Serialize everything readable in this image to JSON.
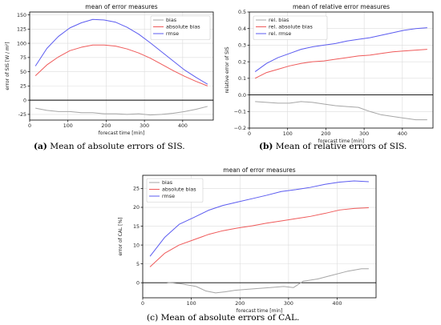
{
  "chart_data": [
    {
      "type": "line",
      "title": "mean of error measures",
      "xlabel": "forecast time [min]",
      "ylabel": "error of SIS [W / m²]",
      "xlim": [
        0,
        480
      ],
      "ylim": [
        -35,
        155
      ],
      "xticks": [
        0,
        100,
        200,
        300,
        400
      ],
      "yticks": [
        -25,
        0,
        25,
        50,
        75,
        100,
        125,
        150
      ],
      "grid": true,
      "legend": "top-right",
      "series": [
        {
          "name": "bias",
          "color": "#a6a6a6",
          "x": [
            15,
            45,
            75,
            105,
            135,
            165,
            195,
            225,
            255,
            285,
            315,
            345,
            375,
            405,
            435,
            465
          ],
          "y": [
            -14,
            -18,
            -20,
            -20,
            -22,
            -22,
            -24,
            -24,
            -25,
            -24,
            -26,
            -25,
            -23,
            -20,
            -16,
            -11
          ]
        },
        {
          "name": "absolute bias",
          "color": "#ef5a5a",
          "x": [
            15,
            45,
            75,
            105,
            135,
            165,
            195,
            225,
            255,
            285,
            315,
            345,
            375,
            405,
            435,
            465
          ],
          "y": [
            43,
            62,
            76,
            87,
            93,
            97,
            97,
            95,
            90,
            83,
            74,
            63,
            52,
            42,
            33,
            25
          ]
        },
        {
          "name": "rmse",
          "color": "#5b5bf0",
          "x": [
            15,
            45,
            75,
            105,
            135,
            165,
            195,
            225,
            255,
            285,
            315,
            345,
            375,
            405,
            435,
            465
          ],
          "y": [
            60,
            91,
            112,
            127,
            136,
            142,
            141,
            137,
            128,
            116,
            101,
            85,
            69,
            53,
            40,
            28
          ]
        }
      ]
    },
    {
      "type": "line",
      "title": "mean of relative error measures",
      "xlabel": "forecast time [min]",
      "ylabel": "relative error of SIS",
      "xlim": [
        0,
        480
      ],
      "ylim": [
        -0.2,
        0.5
      ],
      "xticks": [
        0,
        100,
        200,
        300,
        400
      ],
      "yticks": [
        -0.2,
        -0.1,
        0.0,
        0.1,
        0.2,
        0.3,
        0.4,
        0.5
      ],
      "ytick_labels": [
        "−0.2",
        "−0.1",
        "0.0",
        "0.1",
        "0.2",
        "0.3",
        "0.4",
        "0.5"
      ],
      "grid": true,
      "legend": "top-left",
      "series": [
        {
          "name": "rel. bias",
          "color": "#a6a6a6",
          "x": [
            15,
            45,
            75,
            105,
            135,
            165,
            195,
            225,
            255,
            285,
            315,
            345,
            375,
            405,
            435,
            465
          ],
          "y": [
            -0.04,
            -0.045,
            -0.05,
            -0.05,
            -0.04,
            -0.045,
            -0.055,
            -0.065,
            -0.07,
            -0.075,
            -0.1,
            -0.12,
            -0.13,
            -0.14,
            -0.15,
            -0.15
          ]
        },
        {
          "name": "rel. absolute bias",
          "color": "#ef5a5a",
          "x": [
            15,
            45,
            75,
            105,
            135,
            165,
            195,
            225,
            255,
            285,
            315,
            345,
            375,
            405,
            435,
            465
          ],
          "y": [
            0.1,
            0.135,
            0.155,
            0.175,
            0.19,
            0.2,
            0.205,
            0.215,
            0.225,
            0.235,
            0.24,
            0.25,
            0.26,
            0.265,
            0.27,
            0.275
          ]
        },
        {
          "name": "rel. rmse",
          "color": "#5b5bf0",
          "x": [
            15,
            45,
            75,
            105,
            135,
            165,
            195,
            225,
            255,
            285,
            315,
            345,
            375,
            405,
            435,
            465
          ],
          "y": [
            0.14,
            0.19,
            0.225,
            0.25,
            0.275,
            0.29,
            0.3,
            0.31,
            0.325,
            0.335,
            0.345,
            0.36,
            0.375,
            0.39,
            0.4,
            0.405
          ]
        }
      ]
    },
    {
      "type": "line",
      "title": "mean of error measures",
      "xlabel": "forecast time [min]",
      "ylabel": "error of CAL [%]",
      "xlim": [
        0,
        480
      ],
      "ylim": [
        -4,
        28.5
      ],
      "xticks": [
        0,
        100,
        200,
        300,
        400
      ],
      "yticks": [
        0,
        5,
        10,
        15,
        20,
        25
      ],
      "grid": true,
      "legend": "top-left",
      "series": [
        {
          "name": "bias",
          "color": "#a6a6a6",
          "x": [
            50,
            80,
            110,
            130,
            150,
            170,
            190,
            210,
            240,
            270,
            290,
            310,
            330,
            360,
            390,
            420,
            450,
            465
          ],
          "y": [
            0.1,
            -0.3,
            -1.0,
            -2.2,
            -2.7,
            -2.4,
            -2.0,
            -1.8,
            -1.5,
            -1.2,
            -1.0,
            -1.3,
            0.4,
            1.0,
            2.0,
            3.0,
            3.7,
            3.7
          ]
        },
        {
          "name": "absolute bias",
          "color": "#ef5a5a",
          "x": [
            15,
            45,
            75,
            105,
            135,
            165,
            195,
            225,
            255,
            285,
            315,
            345,
            375,
            405,
            435,
            465
          ],
          "y": [
            4.2,
            7.8,
            10.0,
            11.4,
            12.8,
            13.8,
            14.5,
            15.1,
            15.8,
            16.4,
            17.0,
            17.6,
            18.4,
            19.3,
            19.7,
            19.9
          ]
        },
        {
          "name": "rmse",
          "color": "#5b5bf0",
          "x": [
            15,
            45,
            75,
            105,
            135,
            165,
            195,
            225,
            255,
            285,
            315,
            345,
            375,
            405,
            435,
            465
          ],
          "y": [
            7.0,
            12.0,
            15.5,
            17.3,
            19.2,
            20.5,
            21.4,
            22.3,
            23.2,
            24.2,
            24.7,
            25.3,
            26.1,
            26.7,
            27.0,
            26.8
          ]
        }
      ]
    }
  ],
  "captions": [
    {
      "label": "(a)",
      "text": " Mean of absolute errors of SIS."
    },
    {
      "label": "(b)",
      "text": " Mean of relative errors of SIS."
    },
    {
      "label": "(c)",
      "text": " Mean of absolute errors of CAL."
    }
  ]
}
